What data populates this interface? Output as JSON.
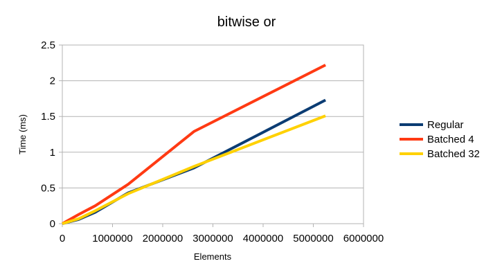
{
  "chart_data": {
    "type": "line",
    "title": "bitwise or",
    "xlabel": "Elements",
    "ylabel": "Time (ms)",
    "xlim": [
      0,
      6000000
    ],
    "ylim": [
      0,
      2.5
    ],
    "x_ticks": [
      0,
      1000000,
      2000000,
      3000000,
      4000000,
      5000000,
      6000000
    ],
    "y_ticks": [
      0,
      0.5,
      1,
      1.5,
      2,
      2.5
    ],
    "grid": "horizontal",
    "legend_position": "right",
    "series": [
      {
        "name": "Regular",
        "color": "#0b3c73",
        "points": [
          [
            0,
            0
          ],
          [
            327680,
            0.06
          ],
          [
            655360,
            0.16
          ],
          [
            1310720,
            0.43
          ],
          [
            2621440,
            0.78
          ],
          [
            5242880,
            1.73
          ]
        ]
      },
      {
        "name": "Batched 4",
        "color": "#ff3a13",
        "points": [
          [
            0,
            0
          ],
          [
            327680,
            0.13
          ],
          [
            655360,
            0.25
          ],
          [
            1310720,
            0.55
          ],
          [
            2621440,
            1.29
          ],
          [
            5242880,
            2.22
          ]
        ]
      },
      {
        "name": "Batched 32",
        "color": "#ffd100",
        "points": [
          [
            0,
            0
          ],
          [
            327680,
            0.07
          ],
          [
            655360,
            0.18
          ],
          [
            1310720,
            0.42
          ],
          [
            2621440,
            0.8
          ],
          [
            5242880,
            1.51
          ]
        ]
      }
    ]
  }
}
